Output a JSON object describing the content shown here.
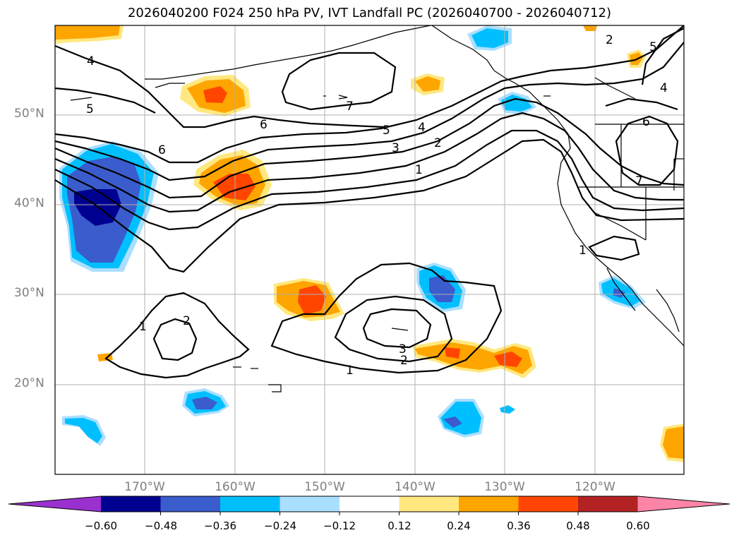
{
  "title": "2026040200 F024 250 hPa PV, IVT Landfall PC (2026040700 - 2026040712)",
  "lat_labels": [
    "50°N",
    "40°N",
    "30°N",
    "20°N"
  ],
  "lon_labels": [
    "170°W",
    "160°W",
    "150°W",
    "140°W",
    "130°W",
    "120°W"
  ],
  "colorbar": {
    "tick_labels": [
      "−0.60",
      "−0.48",
      "−0.36",
      "−0.24",
      "−0.12",
      "0.12",
      "0.24",
      "0.36",
      "0.48",
      "0.60"
    ],
    "colors": [
      "#9b30d0",
      "#000090",
      "#3a5ccc",
      "#00bfff",
      "#abdfff",
      "#ffffff",
      "#ffe880",
      "#ffa500",
      "#ff4500",
      "#b22222",
      "#ff85a8"
    ]
  },
  "contour_labels": [
    "4",
    "5",
    "6",
    "6",
    "7",
    "5",
    "4",
    "3",
    "2",
    "1",
    "6",
    "7",
    "5",
    "4",
    "1",
    "2",
    "3",
    "2",
    "1",
    "1",
    "2"
  ],
  "colors": {
    "contour": "#000000",
    "grid": "#b0b0b0",
    "coast": "#000000"
  }
}
